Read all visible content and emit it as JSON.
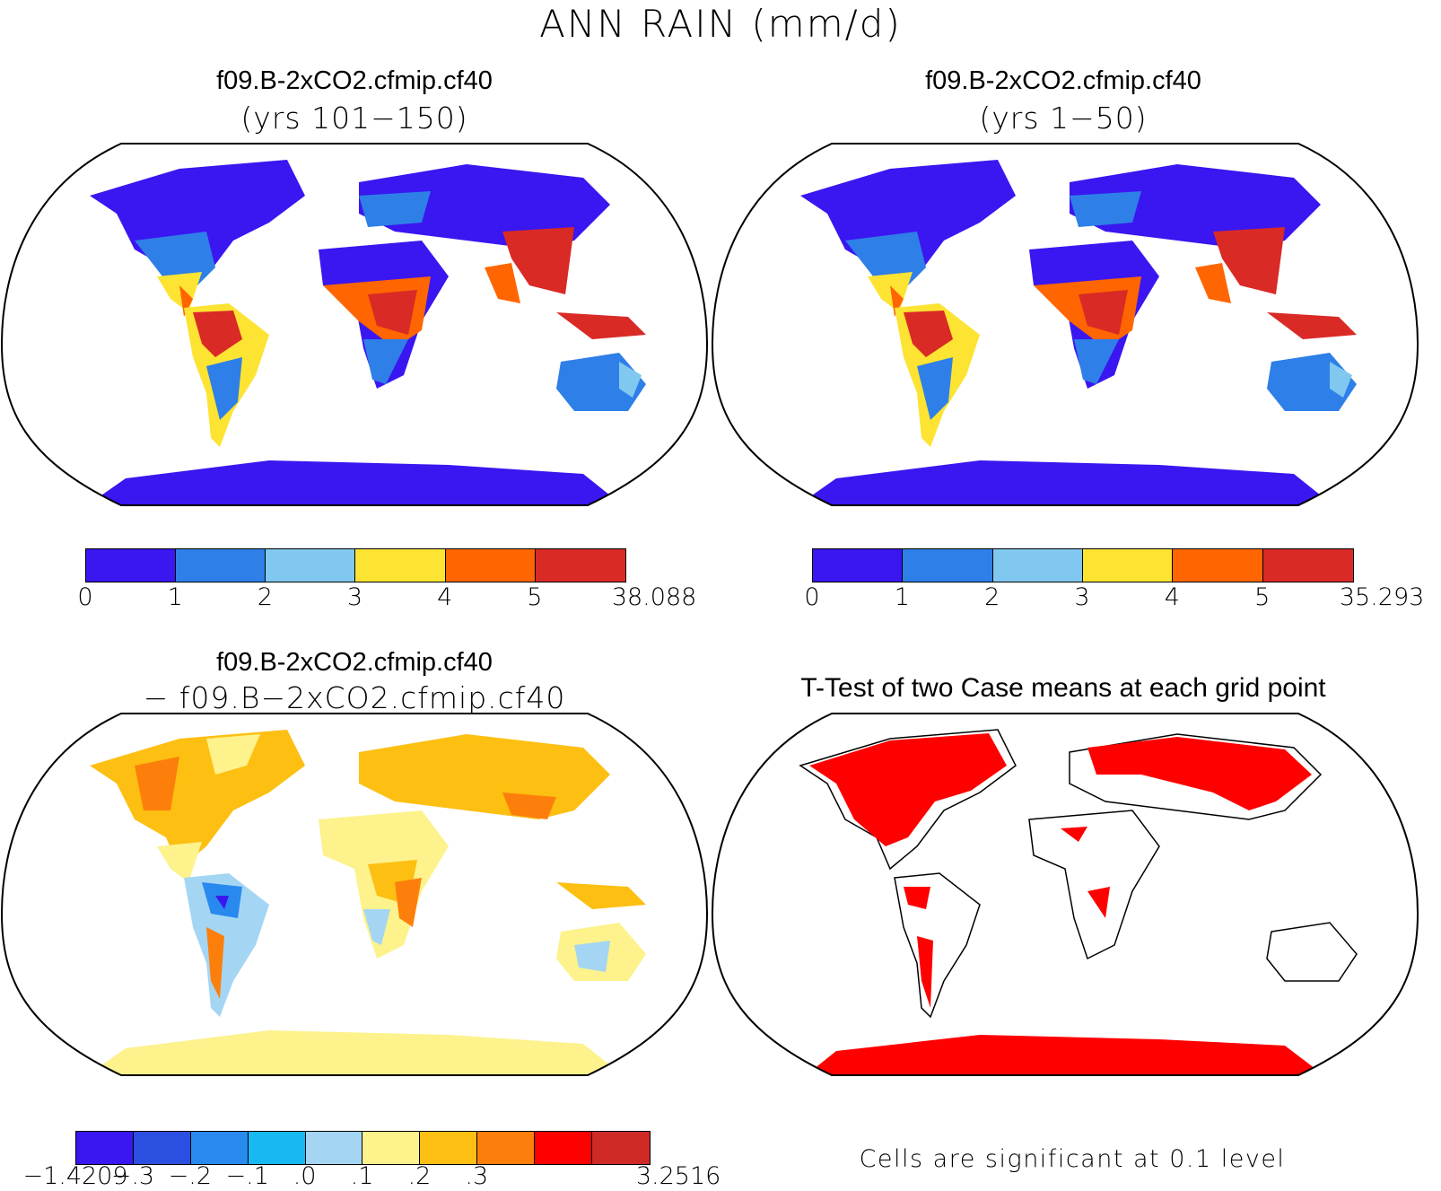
{
  "figure": {
    "title": "ANN RAIN (mm/d)"
  },
  "panels": {
    "top_left": {
      "case": "f09.B-2xCO2.cfmip.cf40",
      "years": "(yrs 101−150)"
    },
    "top_right": {
      "case": "f09.B-2xCO2.cfmip.cf40",
      "years": "(yrs 1−50)"
    },
    "bottom_left": {
      "case": "f09.B-2xCO2.cfmip.cf40",
      "minus_case": "− f09.B−2xCO2.cfmip.cf40"
    },
    "bottom_right": {
      "title": "T-Test of two Case means at each grid point",
      "footnote": "Cells are significant at 0.1 level",
      "significant_color": "#ff0000"
    }
  },
  "colorbars": {
    "top_left": {
      "colors": [
        "#3a16f0",
        "#2e7fe8",
        "#80c8f0",
        "#fde332",
        "#ff6500",
        "#d92a26"
      ],
      "labels": [
        "0",
        "1",
        "2",
        "3",
        "4",
        "5",
        "38.088"
      ]
    },
    "top_right": {
      "colors": [
        "#3a16f0",
        "#2e7fe8",
        "#80c8f0",
        "#fde332",
        "#ff6500",
        "#d92a26"
      ],
      "labels": [
        "0",
        "1",
        "2",
        "3",
        "4",
        "5",
        "35.293"
      ]
    },
    "bottom_left": {
      "colors": [
        "#3a16f0",
        "#2b4fe0",
        "#2889ee",
        "#16b9f2",
        "#a4d6f4",
        "#fdf28c",
        "#fdbf12",
        "#fd7f0b",
        "#ff0000",
        "#d02a27"
      ],
      "labels": [
        "−1.4209",
        "−.3",
        "−.2",
        "−.1",
        ".0",
        ".1",
        ".2",
        ".3",
        "3.2516"
      ]
    }
  }
}
